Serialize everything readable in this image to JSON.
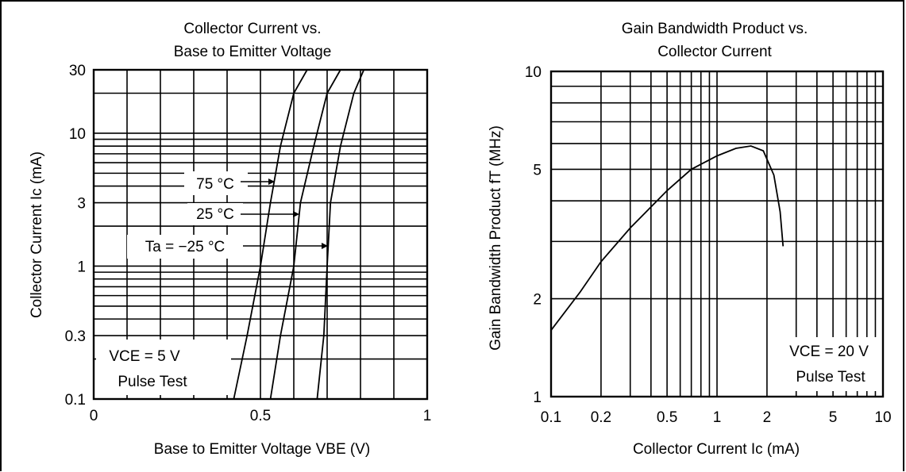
{
  "chart_data": [
    {
      "type": "line",
      "title": "Collector Current vs.",
      "subtitle": "Base to Emitter Voltage",
      "xlabel": "Base to Emitter Voltage   VBE  (V)",
      "ylabel": "Collector Current   Ic   (mA)",
      "xscale": "linear",
      "yscale": "log",
      "xlim": [
        0,
        1
      ],
      "ylim": [
        0.1,
        30
      ],
      "x_ticks": [
        0,
        0.5,
        1
      ],
      "x_tick_labels": [
        "0",
        "0.5",
        "1"
      ],
      "y_ticks": [
        0.1,
        0.3,
        1,
        3,
        10,
        30
      ],
      "y_tick_labels": [
        "0.1",
        "0.3",
        "1",
        "3",
        "10",
        "30"
      ],
      "grid": true,
      "annotations": [
        "VCE = 5 V",
        "Pulse Test"
      ],
      "series": [
        {
          "name": "75 °C",
          "x": [
            0.42,
            0.46,
            0.5,
            0.53,
            0.56,
            0.6,
            0.64
          ],
          "y": [
            0.1,
            0.3,
            1,
            3,
            8,
            20,
            30
          ]
        },
        {
          "name": "25 °C",
          "x": [
            0.53,
            0.56,
            0.6,
            0.62,
            0.66,
            0.7,
            0.74
          ],
          "y": [
            0.1,
            0.3,
            1,
            3,
            8,
            20,
            30
          ]
        },
        {
          "name": "Ta = −25 °C",
          "x": [
            0.67,
            0.69,
            0.7,
            0.71,
            0.74,
            0.78,
            0.81
          ],
          "y": [
            0.1,
            0.3,
            1,
            3,
            8,
            20,
            30
          ]
        }
      ]
    },
    {
      "type": "line",
      "title": "Gain Bandwidth Product vs.",
      "subtitle": "Collector Current",
      "xlabel": "Collector Current   Ic  (mA)",
      "ylabel": "Gain Bandwidth Product  fT  (MHz)",
      "xscale": "log",
      "yscale": "log",
      "xlim": [
        0.1,
        10
      ],
      "ylim": [
        1,
        10
      ],
      "x_ticks": [
        0.1,
        0.2,
        0.5,
        1,
        2,
        5,
        10
      ],
      "x_tick_labels": [
        "0.1",
        "0.2",
        "0.5",
        "1",
        "2",
        "5",
        "10"
      ],
      "y_ticks": [
        1,
        2,
        5,
        10
      ],
      "y_tick_labels": [
        "1",
        "2",
        "5",
        "10"
      ],
      "grid": true,
      "annotations": [
        "VCE = 20 V",
        "Pulse Test"
      ],
      "series": [
        {
          "name": "",
          "x": [
            0.1,
            0.15,
            0.2,
            0.3,
            0.5,
            0.7,
            1.0,
            1.3,
            1.6,
            1.9,
            2.2,
            2.4,
            2.5
          ],
          "y": [
            1.6,
            2.1,
            2.6,
            3.3,
            4.3,
            5.0,
            5.5,
            5.8,
            5.9,
            5.7,
            4.8,
            3.7,
            2.9
          ]
        }
      ]
    }
  ]
}
